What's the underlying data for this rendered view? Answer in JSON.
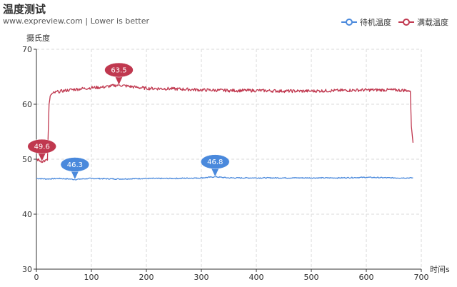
{
  "header": {
    "title": "温度测试",
    "subtitle": "www.expreview.com  |  Lower is better"
  },
  "legend": [
    {
      "name": "待机温度",
      "color": "#4a89dc",
      "icon": "circle-line-icon"
    },
    {
      "name": "满载温度",
      "color": "#c0384f",
      "icon": "circle-line-icon"
    }
  ],
  "chart_data": {
    "type": "line",
    "title": "温度测试",
    "subtitle": "www.expreview.com  |  Lower is better",
    "xlabel": "时间s",
    "ylabel": "摄氏度",
    "xlim": [
      0,
      700
    ],
    "ylim": [
      30,
      70
    ],
    "xticks": [
      0,
      100,
      200,
      300,
      400,
      500,
      600,
      700
    ],
    "yticks": [
      30,
      40,
      50,
      60,
      70
    ],
    "grid": true,
    "legend_position": "top-right",
    "series": [
      {
        "name": "待机温度",
        "color": "#4a89dc",
        "x": [
          0,
          20,
          40,
          60,
          70,
          80,
          100,
          150,
          200,
          250,
          300,
          325,
          350,
          400,
          450,
          500,
          550,
          600,
          650,
          685
        ],
        "y": [
          46.5,
          46.4,
          46.5,
          46.4,
          46.3,
          46.4,
          46.5,
          46.4,
          46.5,
          46.5,
          46.6,
          46.8,
          46.6,
          46.6,
          46.6,
          46.6,
          46.6,
          46.7,
          46.6,
          46.6
        ],
        "markers": [
          {
            "x": 70,
            "y": 46.3,
            "label": "46.3"
          },
          {
            "x": 325,
            "y": 46.8,
            "label": "46.8"
          }
        ]
      },
      {
        "name": "满载温度",
        "color": "#c0384f",
        "x": [
          0,
          10,
          20,
          23,
          25,
          30,
          40,
          60,
          80,
          100,
          120,
          150,
          180,
          200,
          250,
          300,
          350,
          400,
          450,
          500,
          550,
          600,
          650,
          675,
          680,
          682,
          685
        ],
        "y": [
          50.0,
          49.6,
          49.8,
          60.0,
          61.5,
          62.0,
          62.3,
          62.6,
          62.8,
          63.0,
          63.1,
          63.5,
          63.1,
          62.9,
          62.8,
          62.6,
          62.5,
          62.5,
          62.4,
          62.4,
          62.5,
          62.6,
          62.6,
          62.5,
          62.4,
          56.0,
          53.0
        ],
        "markers": [
          {
            "x": 10,
            "y": 49.6,
            "label": "49.6"
          },
          {
            "x": 150,
            "y": 63.5,
            "label": "63.5"
          }
        ]
      }
    ]
  }
}
